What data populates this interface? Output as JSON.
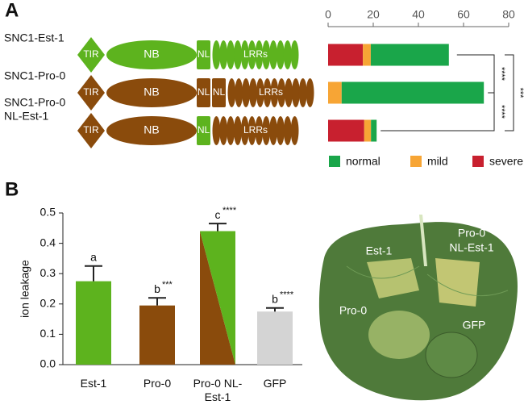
{
  "panels": [
    "A",
    "B"
  ],
  "diagram": {
    "rows": [
      {
        "label": [
          "SNC1-Est-1"
        ],
        "domains": [
          {
            "label": "TIR",
            "color": "#5db31e"
          },
          {
            "label": "NB",
            "color": "#5db31e"
          },
          {
            "label": "NL",
            "color": "#5db31e"
          },
          {
            "label": "LRRs",
            "color": "#5db31e"
          }
        ]
      },
      {
        "label": [
          "SNC1-Pro-0"
        ],
        "domains": [
          {
            "label": "TIR",
            "color": "#8a4b0c"
          },
          {
            "label": "NB",
            "color": "#8a4b0c"
          },
          {
            "label": "NL",
            "color": "#8a4b0c"
          },
          {
            "label": "NL",
            "color": "#8a4b0c"
          },
          {
            "label": "LRRs",
            "color": "#8a4b0c"
          }
        ]
      },
      {
        "label": [
          "SNC1-Pro-0",
          "NL-Est-1"
        ],
        "domains": [
          {
            "label": "TIR",
            "color": "#8a4b0c"
          },
          {
            "label": "NB",
            "color": "#8a4b0c"
          },
          {
            "label": "NL",
            "color": "#5db31e"
          },
          {
            "label": "LRRs",
            "color": "#8a4b0c"
          }
        ]
      }
    ]
  },
  "chart_data": [
    {
      "type": "stacked_barh",
      "xlim": [
        0,
        80
      ],
      "xticks": [
        0,
        20,
        40,
        60,
        80
      ],
      "series": [
        {
          "name": "normal",
          "color": "#1aa64a",
          "values": [
            34.6,
            63,
            2.5
          ]
        },
        {
          "name": "mild",
          "color": "#f7a535",
          "values": [
            3.5,
            6,
            3
          ]
        },
        {
          "name": "severe",
          "color": "#c8202f",
          "values": [
            15.4,
            0,
            16
          ]
        }
      ],
      "annotations": [
        "****",
        "****",
        "***"
      ]
    },
    {
      "type": "bar",
      "ylabel": "ion leakage",
      "categories": [
        "Est-1",
        "Pro-0",
        "Pro-0 NL-Est-1",
        "GFP"
      ],
      "values": [
        0.275,
        0.195,
        0.44,
        0.175
      ],
      "errors": [
        0.05,
        0.025,
        0.025,
        0.012
      ],
      "letters": [
        "a",
        "b",
        "c",
        "b"
      ],
      "stars": [
        null,
        "***",
        "****",
        "****"
      ],
      "colors": [
        [
          "#5db31e"
        ],
        [
          "#8a4b0c"
        ],
        [
          "#8a4b0c",
          "#5db31e"
        ],
        [
          "#d4d4d4"
        ]
      ],
      "ylim": [
        0,
        0.5
      ],
      "yticks": [
        {
          "value": 0,
          "label": "0.0"
        },
        0.1,
        0.2,
        0.3,
        0.4,
        0.5
      ]
    }
  ],
  "photo": {
    "labels": [
      [
        "Est-1"
      ],
      [
        "Pro-0",
        "NL-Est-1"
      ],
      [
        "Pro-0"
      ],
      [
        "GFP"
      ]
    ]
  }
}
